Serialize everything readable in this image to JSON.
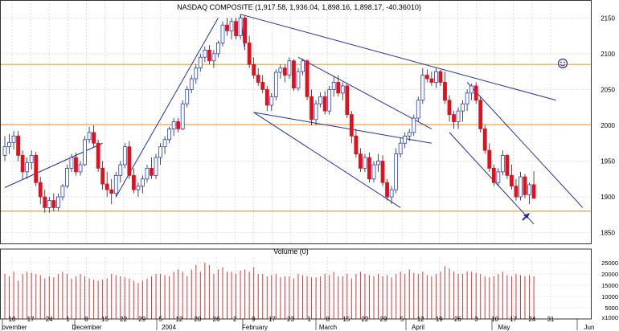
{
  "chart_data": [
    {
      "type": "candlestick",
      "title": "NASDAQ COMPOSITE (1,917.58, 1,936.04, 1,898.16, 1,898.17, -40.36010)",
      "ylim": [
        1835,
        2175
      ],
      "y_ticks": [
        1850,
        1900,
        1950,
        2000,
        2050,
        2100,
        2150
      ],
      "x_ticks": [
        "10",
        "17",
        "24",
        "1",
        "8",
        "15",
        "22",
        "29",
        "5",
        "12",
        "20",
        "26",
        "2",
        "9",
        "17",
        "23",
        "1",
        "8",
        "15",
        "22",
        "29",
        "5",
        "12",
        "19",
        "26",
        "3",
        "10",
        "17",
        "24",
        "31"
      ],
      "months": [
        "ovember",
        "December",
        "2004",
        "February",
        "March",
        "April",
        "May",
        "Jun"
      ],
      "colors": {
        "up": "#1e3fd6",
        "down": "#e0101c",
        "trend": "#1f2fb0",
        "level": "#f0a030",
        "grid": "#cccccc"
      },
      "horizontal_levels": [
        2085,
        2001,
        1880
      ],
      "annotations": [
        "smiley-icon",
        "arrow-icon"
      ],
      "candles": [
        [
          1958,
          1985,
          1950,
          1970
        ],
        [
          1970,
          1988,
          1960,
          1976
        ],
        [
          1976,
          1992,
          1966,
          1985
        ],
        [
          1985,
          1992,
          1950,
          1958
        ],
        [
          1958,
          1965,
          1925,
          1935
        ],
        [
          1935,
          1955,
          1925,
          1948
        ],
        [
          1948,
          1965,
          1938,
          1958
        ],
        [
          1958,
          1963,
          1915,
          1920
        ],
        [
          1920,
          1928,
          1890,
          1900
        ],
        [
          1900,
          1910,
          1878,
          1885
        ],
        [
          1885,
          1900,
          1878,
          1895
        ],
        [
          1895,
          1905,
          1880,
          1885
        ],
        [
          1885,
          1905,
          1880,
          1900
        ],
        [
          1900,
          1918,
          1895,
          1915
        ],
        [
          1915,
          1945,
          1912,
          1940
        ],
        [
          1940,
          1960,
          1935,
          1955
        ],
        [
          1955,
          1962,
          1930,
          1935
        ],
        [
          1935,
          1950,
          1930,
          1945
        ],
        [
          1945,
          1985,
          1943,
          1980
        ],
        [
          1980,
          1998,
          1975,
          1990
        ],
        [
          1990,
          2000,
          1970,
          1975
        ],
        [
          1975,
          1980,
          1935,
          1940
        ],
        [
          1940,
          1950,
          1910,
          1918
        ],
        [
          1918,
          1935,
          1900,
          1910
        ],
        [
          1910,
          1925,
          1890,
          1905
        ],
        [
          1905,
          1935,
          1900,
          1930
        ],
        [
          1930,
          1950,
          1920,
          1945
        ],
        [
          1945,
          1975,
          1940,
          1970
        ],
        [
          1970,
          1978,
          1925,
          1930
        ],
        [
          1930,
          1940,
          1905,
          1910
        ],
        [
          1910,
          1920,
          1900,
          1915
        ],
        [
          1915,
          1930,
          1905,
          1925
        ],
        [
          1925,
          1945,
          1920,
          1940
        ],
        [
          1940,
          1955,
          1925,
          1930
        ],
        [
          1930,
          1960,
          1925,
          1955
        ],
        [
          1955,
          1975,
          1945,
          1970
        ],
        [
          1970,
          1985,
          1960,
          1980
        ],
        [
          1980,
          1998,
          1975,
          1995
        ],
        [
          1995,
          2010,
          1985,
          2005
        ],
        [
          2005,
          2010,
          1990,
          1995
        ],
        [
          1995,
          2035,
          1993,
          2030
        ],
        [
          2030,
          2055,
          2025,
          2050
        ],
        [
          2050,
          2070,
          2045,
          2065
        ],
        [
          2065,
          2085,
          2058,
          2080
        ],
        [
          2080,
          2100,
          2075,
          2095
        ],
        [
          2095,
          2110,
          2088,
          2105
        ],
        [
          2105,
          2112,
          2085,
          2090
        ],
        [
          2090,
          2105,
          2080,
          2100
        ],
        [
          2100,
          2118,
          2095,
          2115
        ],
        [
          2115,
          2145,
          2110,
          2140
        ],
        [
          2140,
          2150,
          2125,
          2132
        ],
        [
          2132,
          2150,
          2120,
          2145
        ],
        [
          2145,
          2150,
          2120,
          2125
        ],
        [
          2125,
          2155,
          2120,
          2150
        ],
        [
          2150,
          2153,
          2110,
          2115
        ],
        [
          2115,
          2125,
          2080,
          2085
        ],
        [
          2085,
          2095,
          2065,
          2070
        ],
        [
          2070,
          2080,
          2055,
          2060
        ],
        [
          2060,
          2070,
          2045,
          2050
        ],
        [
          2050,
          2055,
          2020,
          2028
        ],
        [
          2028,
          2045,
          2020,
          2040
        ],
        [
          2040,
          2078,
          2035,
          2074
        ],
        [
          2074,
          2085,
          2065,
          2080
        ],
        [
          2080,
          2085,
          2060,
          2070
        ],
        [
          2070,
          2095,
          2065,
          2090
        ],
        [
          2090,
          2092,
          2048,
          2052
        ],
        [
          2052,
          2080,
          2048,
          2075
        ],
        [
          2075,
          2093,
          2070,
          2090
        ],
        [
          2090,
          2092,
          2035,
          2040
        ],
        [
          2040,
          2050,
          2000,
          2008
        ],
        [
          2008,
          2035,
          2000,
          2030
        ],
        [
          2030,
          2046,
          2025,
          2040
        ],
        [
          2040,
          2048,
          2015,
          2020
        ],
        [
          2020,
          2055,
          2015,
          2050
        ],
        [
          2050,
          2068,
          2040,
          2060
        ],
        [
          2060,
          2070,
          2040,
          2045
        ],
        [
          2045,
          2060,
          2035,
          2055
        ],
        [
          2055,
          2058,
          2010,
          2015
        ],
        [
          2015,
          2020,
          1975,
          1985
        ],
        [
          1985,
          1995,
          1955,
          1960
        ],
        [
          1960,
          1968,
          1935,
          1940
        ],
        [
          1940,
          1960,
          1935,
          1955
        ],
        [
          1955,
          1962,
          1920,
          1925
        ],
        [
          1925,
          1950,
          1920,
          1945
        ],
        [
          1945,
          1960,
          1935,
          1950
        ],
        [
          1950,
          1958,
          1915,
          1920
        ],
        [
          1920,
          1925,
          1895,
          1900
        ],
        [
          1900,
          1915,
          1890,
          1910
        ],
        [
          1910,
          1968,
          1905,
          1960
        ],
        [
          1960,
          1982,
          1955,
          1975
        ],
        [
          1975,
          1990,
          1968,
          1985
        ],
        [
          1985,
          1995,
          1978,
          1990
        ],
        [
          1990,
          2015,
          1985,
          2010
        ],
        [
          2010,
          2040,
          2005,
          2035
        ],
        [
          2035,
          2080,
          2030,
          2070
        ],
        [
          2070,
          2078,
          2060,
          2065
        ],
        [
          2065,
          2075,
          2055,
          2060
        ],
        [
          2060,
          2080,
          2052,
          2075
        ],
        [
          2075,
          2078,
          2055,
          2060
        ],
        [
          2060,
          2075,
          2030,
          2035
        ],
        [
          2035,
          2042,
          2005,
          2015
        ],
        [
          2015,
          2020,
          1995,
          2005
        ],
        [
          2005,
          2025,
          1995,
          2020
        ],
        [
          2020,
          2035,
          2005,
          2030
        ],
        [
          2030,
          2050,
          2020,
          2045
        ],
        [
          2045,
          2058,
          2035,
          2055
        ],
        [
          2055,
          2060,
          2030,
          2035
        ],
        [
          2035,
          2040,
          1990,
          1995
        ],
        [
          1995,
          2000,
          1960,
          1965
        ],
        [
          1965,
          1975,
          1935,
          1940
        ],
        [
          1940,
          1945,
          1915,
          1920
        ],
        [
          1920,
          1940,
          1915,
          1935
        ],
        [
          1935,
          1965,
          1930,
          1958
        ],
        [
          1958,
          1960,
          1925,
          1930
        ],
        [
          1930,
          1945,
          1910,
          1915
        ],
        [
          1915,
          1925,
          1895,
          1900
        ],
        [
          1900,
          1935,
          1895,
          1928
        ],
        [
          1928,
          1932,
          1898,
          1903
        ],
        [
          1903,
          1920,
          1890,
          1917
        ],
        [
          1917,
          1936,
          1898,
          1898
        ]
      ]
    },
    {
      "type": "bar",
      "title": "Volume (0)",
      "ylim": [
        0,
        27500
      ],
      "y_ticks": [
        "25000",
        "20000",
        "15000",
        "10000",
        "5000",
        "x1000"
      ],
      "values": [
        20000,
        19000,
        21000,
        17000,
        20000,
        21000,
        20500,
        20000,
        19500,
        18000,
        19000,
        18500,
        20000,
        21000,
        20000,
        18000,
        19000,
        20000,
        19000,
        18000,
        17500,
        17000,
        17500,
        18000,
        20000,
        19500,
        19000,
        18500,
        18000,
        17000,
        16000,
        17000,
        18000,
        19000,
        20000,
        20000,
        19500,
        19000,
        21000,
        22000,
        21000,
        19000,
        22000,
        24000,
        21000,
        25000,
        24000,
        20000,
        22000,
        23000,
        21000,
        21000,
        20000,
        21500,
        22000,
        21000,
        23000,
        20000,
        20000,
        19000,
        19500,
        20000,
        18500,
        19000,
        19000,
        18000,
        20000,
        19500,
        19000,
        18500,
        18500,
        19000,
        20000,
        19500,
        21000,
        19000,
        19000,
        20000,
        18000,
        20000,
        21000,
        20000,
        19500,
        19000,
        20000,
        19000,
        19500,
        18500,
        20000,
        21000,
        20000,
        22000,
        20500,
        20000,
        21000,
        19500,
        19000,
        20000,
        21000,
        23500,
        22500,
        21000,
        20000,
        20000,
        21000,
        21000,
        20500,
        20000,
        19000,
        18500,
        19000,
        20000,
        21000,
        19500,
        19000,
        20000,
        19500,
        19000,
        19500,
        19000
      ]
    }
  ]
}
